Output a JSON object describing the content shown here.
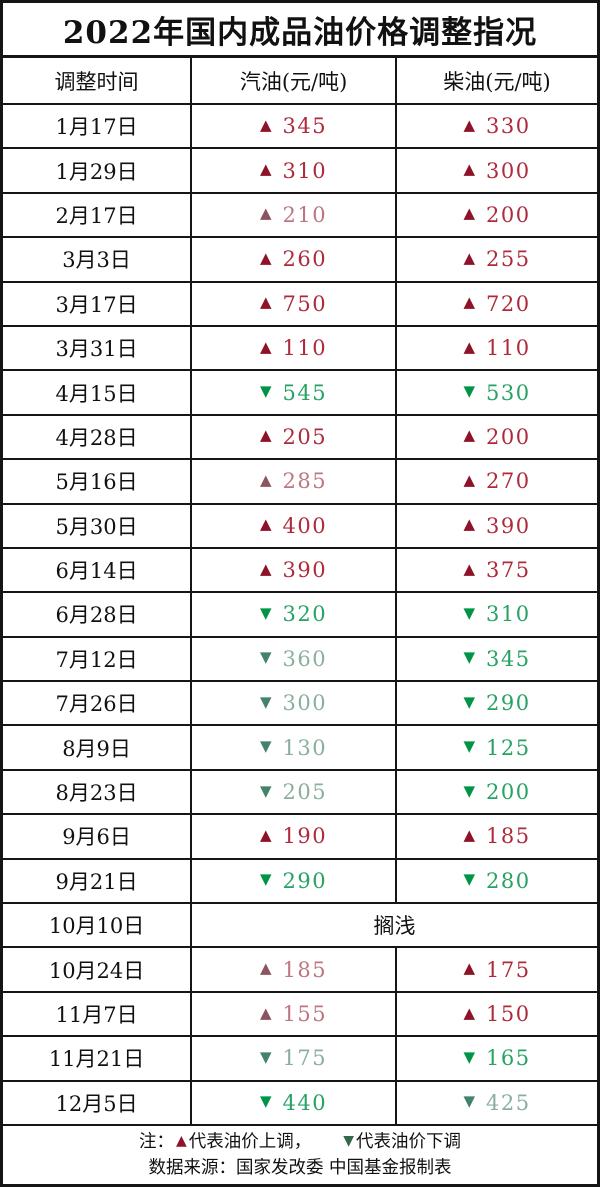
{
  "title": "2022年国内成品油价格调整指况",
  "columns": [
    "调整时间",
    "汽油(元/吨)",
    "柴油(元/吨)"
  ],
  "symbols": {
    "up": "▲",
    "down": "▼"
  },
  "rows": [
    {
      "date": "1月17日",
      "gasoline": {
        "dir": "up",
        "value": "345",
        "tone": "bright"
      },
      "diesel": {
        "dir": "up",
        "value": "330",
        "tone": "bright"
      }
    },
    {
      "date": "1月29日",
      "gasoline": {
        "dir": "up",
        "value": "310",
        "tone": "bright"
      },
      "diesel": {
        "dir": "up",
        "value": "300",
        "tone": "bright"
      }
    },
    {
      "date": "2月17日",
      "gasoline": {
        "dir": "up",
        "value": "210",
        "tone": "muted"
      },
      "diesel": {
        "dir": "up",
        "value": "200",
        "tone": "bright"
      }
    },
    {
      "date": "3月3日",
      "gasoline": {
        "dir": "up",
        "value": "260",
        "tone": "bright"
      },
      "diesel": {
        "dir": "up",
        "value": "255",
        "tone": "bright"
      }
    },
    {
      "date": "3月17日",
      "gasoline": {
        "dir": "up",
        "value": "750",
        "tone": "bright"
      },
      "diesel": {
        "dir": "up",
        "value": "720",
        "tone": "bright"
      }
    },
    {
      "date": "3月31日",
      "gasoline": {
        "dir": "up",
        "value": "110",
        "tone": "bright"
      },
      "diesel": {
        "dir": "up",
        "value": "110",
        "tone": "bright"
      }
    },
    {
      "date": "4月15日",
      "gasoline": {
        "dir": "down",
        "value": "545",
        "tone": "bright"
      },
      "diesel": {
        "dir": "down",
        "value": "530",
        "tone": "bright"
      }
    },
    {
      "date": "4月28日",
      "gasoline": {
        "dir": "up",
        "value": "205",
        "tone": "bright"
      },
      "diesel": {
        "dir": "up",
        "value": "200",
        "tone": "bright"
      }
    },
    {
      "date": "5月16日",
      "gasoline": {
        "dir": "up",
        "value": "285",
        "tone": "muted"
      },
      "diesel": {
        "dir": "up",
        "value": "270",
        "tone": "bright"
      }
    },
    {
      "date": "5月30日",
      "gasoline": {
        "dir": "up",
        "value": "400",
        "tone": "bright"
      },
      "diesel": {
        "dir": "up",
        "value": "390",
        "tone": "bright"
      }
    },
    {
      "date": "6月14日",
      "gasoline": {
        "dir": "up",
        "value": "390",
        "tone": "bright"
      },
      "diesel": {
        "dir": "up",
        "value": "375",
        "tone": "bright"
      }
    },
    {
      "date": "6月28日",
      "gasoline": {
        "dir": "down",
        "value": "320",
        "tone": "bright"
      },
      "diesel": {
        "dir": "down",
        "value": "310",
        "tone": "bright"
      }
    },
    {
      "date": "7月12日",
      "gasoline": {
        "dir": "down",
        "value": "360",
        "tone": "muted"
      },
      "diesel": {
        "dir": "down",
        "value": "345",
        "tone": "bright"
      }
    },
    {
      "date": "7月26日",
      "gasoline": {
        "dir": "down",
        "value": "300",
        "tone": "muted"
      },
      "diesel": {
        "dir": "down",
        "value": "290",
        "tone": "bright"
      }
    },
    {
      "date": "8月9日",
      "gasoline": {
        "dir": "down",
        "value": "130",
        "tone": "muted"
      },
      "diesel": {
        "dir": "down",
        "value": "125",
        "tone": "bright"
      }
    },
    {
      "date": "8月23日",
      "gasoline": {
        "dir": "down",
        "value": "205",
        "tone": "muted"
      },
      "diesel": {
        "dir": "down",
        "value": "200",
        "tone": "bright"
      }
    },
    {
      "date": "9月6日",
      "gasoline": {
        "dir": "up",
        "value": "190",
        "tone": "bright"
      },
      "diesel": {
        "dir": "up",
        "value": "185",
        "tone": "bright"
      }
    },
    {
      "date": "9月21日",
      "gasoline": {
        "dir": "down",
        "value": "290",
        "tone": "bright"
      },
      "diesel": {
        "dir": "down",
        "value": "280",
        "tone": "bright"
      }
    },
    {
      "date": "10月10日",
      "merged": "搁浅"
    },
    {
      "date": "10月24日",
      "gasoline": {
        "dir": "up",
        "value": "185",
        "tone": "muted"
      },
      "diesel": {
        "dir": "up",
        "value": "175",
        "tone": "bright"
      }
    },
    {
      "date": "11月7日",
      "gasoline": {
        "dir": "up",
        "value": "155",
        "tone": "muted"
      },
      "diesel": {
        "dir": "up",
        "value": "150",
        "tone": "bright"
      }
    },
    {
      "date": "11月21日",
      "gasoline": {
        "dir": "down",
        "value": "175",
        "tone": "muted"
      },
      "diesel": {
        "dir": "down",
        "value": "165",
        "tone": "bright"
      }
    },
    {
      "date": "12月5日",
      "gasoline": {
        "dir": "down",
        "value": "440",
        "tone": "bright"
      },
      "diesel": {
        "dir": "down",
        "value": "425",
        "tone": "muted"
      }
    }
  ],
  "note": {
    "label": "注：",
    "up_text": "代表油价上调，",
    "down_text": "代表油价下调",
    "source": "数据来源：国家发改委  中国基金报制表"
  },
  "colors": {
    "up_bright_triangle": "#8E1228",
    "up_bright_value": "#AE2B3C",
    "up_muted_triangle": "#8A5560",
    "up_muted_value": "#BE7680",
    "down_bright_triangle": "#009447",
    "down_bright_value": "#27A263",
    "down_muted_triangle": "#44836A",
    "down_muted_value": "#8BAF9D",
    "note_up": "#8E1228",
    "note_down": "#33684B"
  }
}
